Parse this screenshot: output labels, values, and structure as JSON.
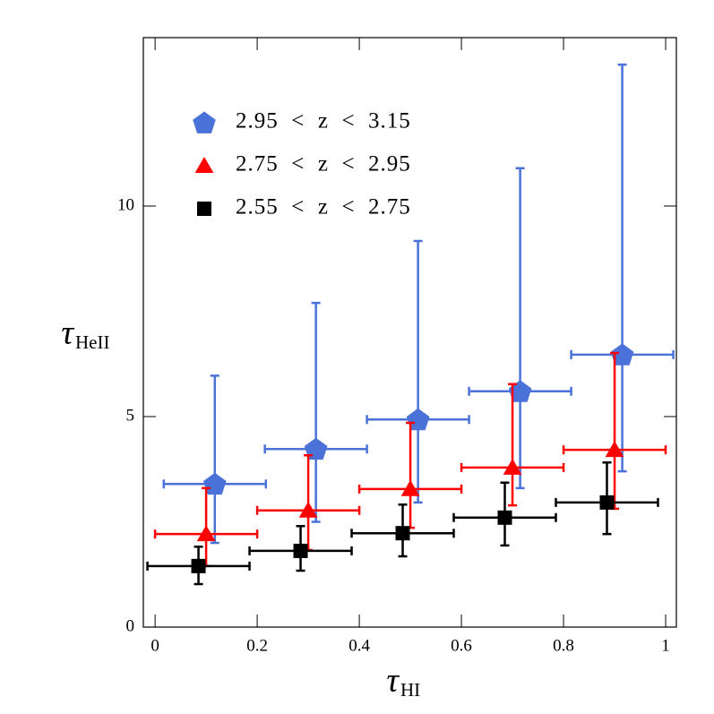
{
  "chart_data": {
    "type": "scatter",
    "xlabel": "τ",
    "xlabel_sub": "HI",
    "ylabel": "τ",
    "ylabel_sub": "HeII",
    "xlim": [
      -0.023,
      1.021
    ],
    "ylim": [
      0,
      14
    ],
    "xticks": [
      0,
      0.2,
      0.4,
      0.6,
      0.8,
      1
    ],
    "yticks": [
      0,
      5,
      10
    ],
    "legend": "upper left",
    "series": [
      {
        "name": "2.95  <  z  <  3.15",
        "color": "#4a72d8",
        "marker": "pentagon",
        "x": [
          0.117,
          0.315,
          0.515,
          0.715,
          0.915
        ],
        "y": [
          3.4,
          4.23,
          4.93,
          5.6,
          6.47
        ],
        "xerr": [
          0.1,
          0.1,
          0.1,
          0.1,
          0.1
        ],
        "yerr_upper": [
          2.57,
          3.47,
          4.24,
          5.3,
          6.89
        ],
        "yerr_lower": [
          1.4,
          1.73,
          1.97,
          2.3,
          2.77
        ]
      },
      {
        "name": "2.75  <  z  <  2.95",
        "color": "#ff0000",
        "marker": "triangle",
        "x": [
          0.1,
          0.3,
          0.5,
          0.7,
          0.9
        ],
        "y": [
          2.21,
          2.77,
          3.28,
          3.79,
          4.21
        ],
        "xerr": [
          0.1,
          0.1,
          0.1,
          0.1,
          0.1
        ],
        "yerr_upper": [
          1.09,
          1.31,
          1.57,
          1.98,
          2.3
        ],
        "yerr_lower": [
          0.76,
          0.94,
          0.92,
          0.9,
          1.4
        ]
      },
      {
        "name": "2.55  <  z  <  2.75",
        "color": "#000000",
        "marker": "square",
        "x": [
          0.085,
          0.285,
          0.485,
          0.685,
          0.885
        ],
        "y": [
          1.45,
          1.81,
          2.23,
          2.6,
          2.96
        ],
        "xerr": [
          0.1,
          0.1,
          0.1,
          0.1,
          0.1
        ],
        "yerr_upper": [
          0.46,
          0.59,
          0.68,
          0.83,
          0.95
        ],
        "yerr_lower": [
          0.43,
          0.47,
          0.55,
          0.66,
          0.75
        ]
      }
    ]
  }
}
